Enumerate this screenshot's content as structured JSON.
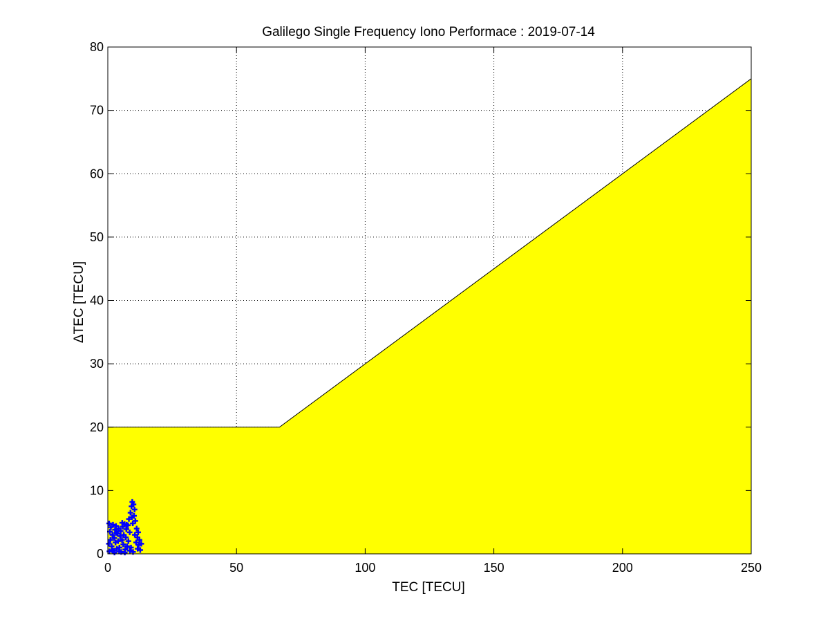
{
  "chart_data": {
    "type": "scatter",
    "title": "Galilego Single Frequency Iono Performace : 2019-07-14",
    "xlabel": "TEC [TECU]",
    "ylabel": "ΔTEC [TECU]",
    "xlim": [
      0,
      250
    ],
    "ylim": [
      0,
      80
    ],
    "xticks": [
      "0",
      "50",
      "100",
      "150",
      "200",
      "250"
    ],
    "yticks": [
      "0",
      "10",
      "20",
      "30",
      "40",
      "50",
      "60",
      "70",
      "80"
    ],
    "grid": true,
    "threshold_region": {
      "color": "#ffff00",
      "edge_color": "#000000",
      "x": [
        0,
        66.7,
        250
      ],
      "y": [
        20,
        20,
        75
      ]
    },
    "series": [
      {
        "color": "#0000ff",
        "marker": "+",
        "points": [
          [
            0.5,
            4.8
          ],
          [
            0.8,
            3.5
          ],
          [
            1.0,
            2.2
          ],
          [
            1.2,
            4.2
          ],
          [
            1.5,
            1.2
          ],
          [
            1.8,
            3.0
          ],
          [
            2.0,
            4.6
          ],
          [
            2.2,
            0.5
          ],
          [
            2.5,
            2.5
          ],
          [
            2.8,
            3.8
          ],
          [
            3.0,
            1.8
          ],
          [
            3.2,
            4.4
          ],
          [
            3.5,
            0.8
          ],
          [
            3.8,
            3.2
          ],
          [
            4.0,
            2.0
          ],
          [
            4.2,
            4.0
          ],
          [
            4.5,
            1.0
          ],
          [
            4.8,
            2.8
          ],
          [
            5.0,
            3.6
          ],
          [
            5.2,
            0.3
          ],
          [
            5.5,
            2.2
          ],
          [
            5.8,
            4.3
          ],
          [
            6.0,
            1.5
          ],
          [
            6.2,
            3.0
          ],
          [
            6.5,
            4.7
          ],
          [
            6.8,
            0.7
          ],
          [
            7.0,
            2.6
          ],
          [
            7.2,
            3.9
          ],
          [
            7.5,
            1.2
          ],
          [
            7.8,
            4.5
          ],
          [
            8.0,
            2.0
          ],
          [
            8.2,
            5.5
          ],
          [
            8.5,
            3.4
          ],
          [
            8.8,
            6.5
          ],
          [
            9.0,
            1.0
          ],
          [
            9.2,
            7.5
          ],
          [
            9.5,
            8.2
          ],
          [
            9.7,
            4.8
          ],
          [
            10.0,
            7.8
          ],
          [
            10.2,
            6.0
          ],
          [
            10.5,
            3.0
          ],
          [
            10.7,
            5.2
          ],
          [
            11.0,
            1.8
          ],
          [
            11.2,
            4.0
          ],
          [
            11.5,
            2.6
          ],
          [
            11.8,
            3.4
          ],
          [
            12.0,
            1.4
          ],
          [
            12.3,
            2.2
          ],
          [
            12.6,
            0.6
          ],
          [
            13.0,
            1.6
          ],
          [
            2.6,
            0.2
          ],
          [
            4.4,
            0.4
          ],
          [
            6.6,
            0.2
          ],
          [
            8.6,
            0.5
          ],
          [
            9.8,
            0.3
          ],
          [
            3.3,
            3.3
          ],
          [
            5.6,
            4.9
          ],
          [
            7.3,
            4.6
          ],
          [
            9.4,
            5.8
          ],
          [
            10.4,
            7.0
          ],
          [
            1.6,
            0.6
          ],
          [
            0.4,
            1.6
          ],
          [
            0.6,
            0.4
          ],
          [
            11.6,
            0.8
          ]
        ]
      }
    ]
  }
}
